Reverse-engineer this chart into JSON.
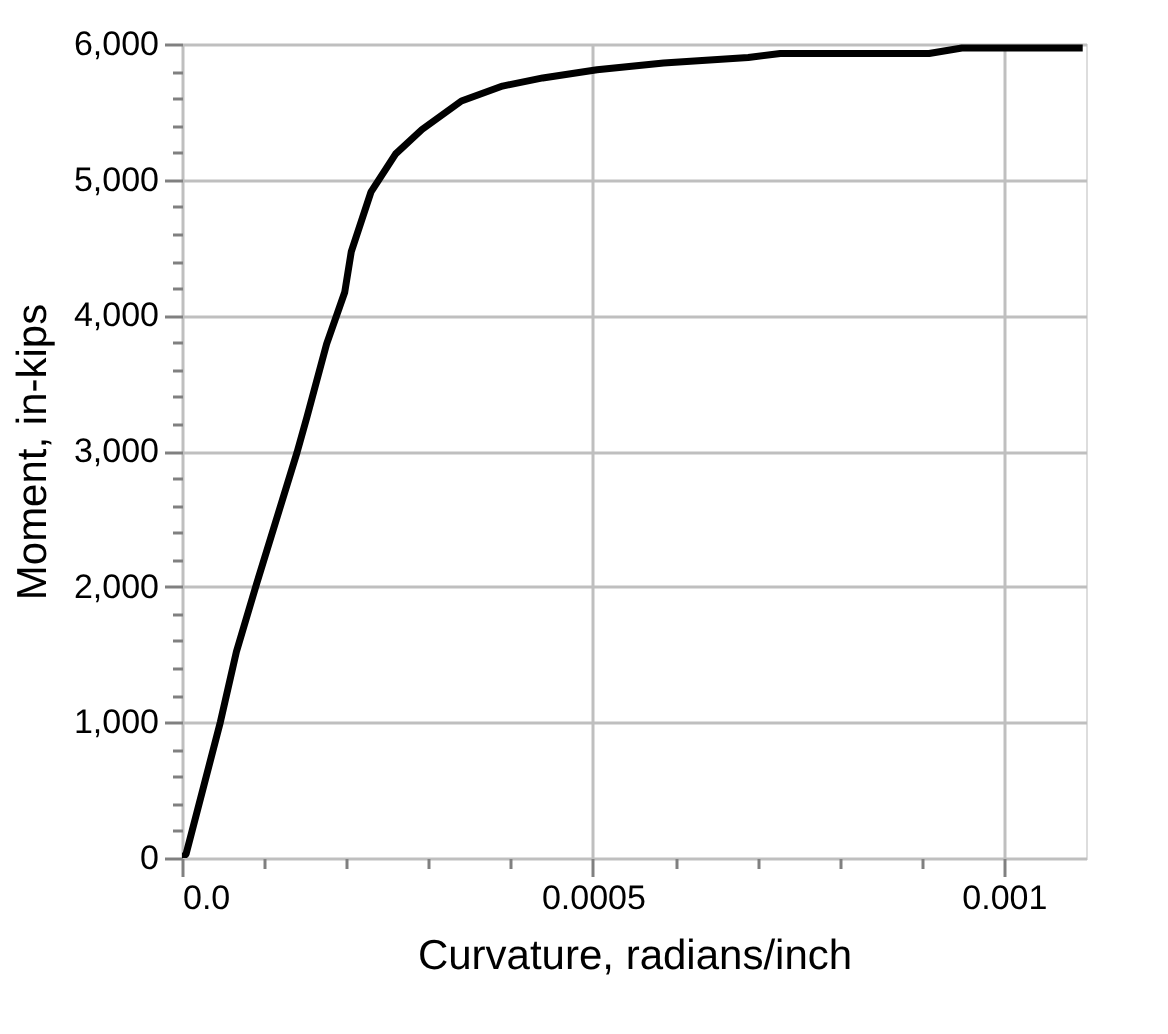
{
  "chart_data": {
    "type": "line",
    "xlabel": "Curvature, radians/inch",
    "ylabel": "Moment, in-kips",
    "x": [
      0,
      5e-06,
      4.66e-05,
      6.62e-05,
      9.07e-05,
      0.00014,
      0.000152,
      0.000176,
      0.000198,
      0.000206,
      0.00023,
      0.00026,
      0.000292,
      0.00034,
      0.00039,
      0.000439,
      0.000505,
      0.000586,
      0.000689,
      0.000728,
      0.000909,
      0.000949,
      0.001096
    ],
    "series": [
      {
        "color": "#000000",
        "values": [
          0,
          30,
          1000,
          1520,
          2020,
          2990,
          3250,
          3790,
          4170,
          4470,
          4910,
          5190,
          5370,
          5580,
          5690,
          5750,
          5810,
          5860,
          5900,
          5930,
          5930,
          5970,
          5970
        ]
      }
    ],
    "xlim": [
      0,
      0.0011
    ],
    "xticks": [
      {
        "value": 0,
        "label": "0.0"
      },
      {
        "value": 0.0001,
        "label": null
      },
      {
        "value": 0.0002,
        "label": null
      },
      {
        "value": 0.0003,
        "label": null
      },
      {
        "value": 0.0004,
        "label": null
      },
      {
        "value": 0.0005,
        "label": "0.0005"
      },
      {
        "value": 0.0006,
        "label": null
      },
      {
        "value": 0.0007,
        "label": null
      },
      {
        "value": 0.0008,
        "label": null
      },
      {
        "value": 0.0009,
        "label": null
      },
      {
        "value": 0.001,
        "label": "0.001"
      }
    ],
    "ylim": [
      0,
      6000
    ],
    "yticks": [
      {
        "value": 0,
        "label": "0"
      },
      {
        "value": 200,
        "label": null
      },
      {
        "value": 400,
        "label": null
      },
      {
        "value": 600,
        "label": null
      },
      {
        "value": 800,
        "label": null
      },
      {
        "value": 1000,
        "label": "1,000"
      },
      {
        "value": 1200,
        "label": null
      },
      {
        "value": 1400,
        "label": null
      },
      {
        "value": 1600,
        "label": null
      },
      {
        "value": 1800,
        "label": null
      },
      {
        "value": 2000,
        "label": "2,000"
      },
      {
        "value": 2200,
        "label": null
      },
      {
        "value": 2400,
        "label": null
      },
      {
        "value": 2600,
        "label": null
      },
      {
        "value": 2800,
        "label": null
      },
      {
        "value": 3000,
        "label": "3,000"
      },
      {
        "value": 3200,
        "label": null
      },
      {
        "value": 3400,
        "label": null
      },
      {
        "value": 3600,
        "label": null
      },
      {
        "value": 3800,
        "label": null
      },
      {
        "value": 4000,
        "label": "4,000"
      },
      {
        "value": 4200,
        "label": null
      },
      {
        "value": 4400,
        "label": null
      },
      {
        "value": 4600,
        "label": null
      },
      {
        "value": 4800,
        "label": null
      },
      {
        "value": 5000,
        "label": "5,000"
      },
      {
        "value": 5200,
        "label": null
      },
      {
        "value": 5400,
        "label": null
      },
      {
        "value": 5600,
        "label": null
      },
      {
        "value": 5800,
        "label": null
      },
      {
        "value": 6000,
        "label": "6,000"
      }
    ],
    "grid": true,
    "marker": "none",
    "line_style": "solid"
  }
}
